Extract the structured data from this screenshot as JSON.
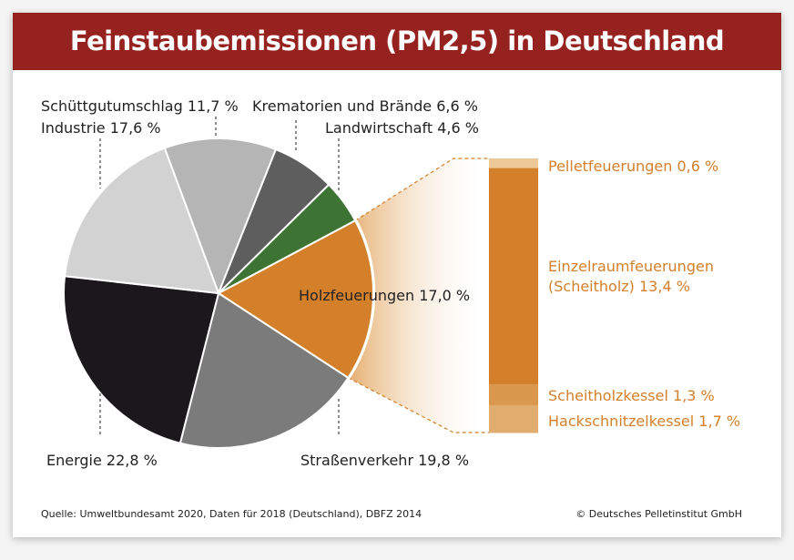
{
  "chart_data": {
    "type": "pie",
    "title": "Feinstaubemissionen (PM2,5) in Deutschland",
    "slices": [
      {
        "label": "Holzfeuerungen 17,0 %",
        "value": 17.0,
        "color": "#d4802a"
      },
      {
        "label": "Straßenverkehr 19,8 %",
        "value": 19.8,
        "color": "#7b7b7c"
      },
      {
        "label": "Energie 22,8 %",
        "value": 22.8,
        "color": "#1b181c"
      },
      {
        "label": "Industrie 17,6 %",
        "value": 17.6,
        "color": "#d2d2d2"
      },
      {
        "label": "Schüttgutumschlag 11,7 %",
        "value": 11.7,
        "color": "#b5b5b6"
      },
      {
        "label": "Krematorien und Brände 6,6 %",
        "value": 6.6,
        "color": "#5e5e5f"
      },
      {
        "label": "Landwirtschaft 4,6 %",
        "value": 4.6,
        "color": "#3d7433"
      }
    ],
    "breakdown": {
      "of": "Holzfeuerungen",
      "type": "stacked-bar",
      "segments": [
        {
          "label": "Pelletfeuerungen 0,6 %",
          "value": 0.6,
          "color": "#edc99a"
        },
        {
          "label": "Einzelraumfeuerungen (Scheitholz) 13,4 %",
          "line1": "Einzelraumfeuerungen",
          "line2": "(Scheitholz) 13,4 %",
          "value": 13.4,
          "color": "#d4802a"
        },
        {
          "label": "Scheitholzkessel 1,3 %",
          "value": 1.3,
          "color": "#d9984e"
        },
        {
          "label": "Hackschnitzelkessel 1,7 %",
          "value": 1.7,
          "color": "#e0ad6e"
        }
      ]
    }
  },
  "footer": {
    "source": "Quelle: Umweltbundesamt 2020, Daten für 2018 (Deutschland), DBFZ 2014",
    "copyright": "© Deutsches Pelletinstitut GmbH"
  }
}
